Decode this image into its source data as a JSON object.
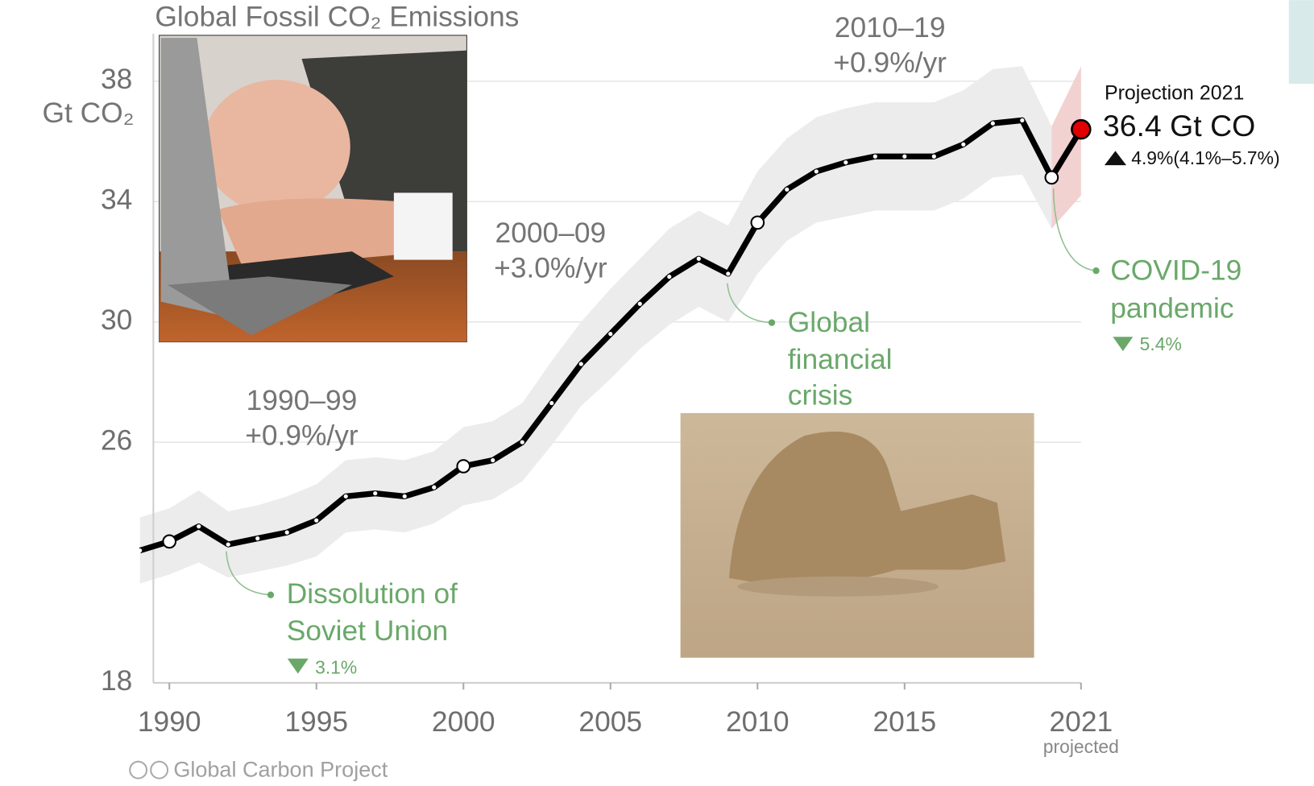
{
  "chart_data": {
    "type": "line",
    "title": "Global Fossil CO₂ Emissions",
    "y_label": "Gt CO₂",
    "x": [
      1989,
      1990,
      1991,
      1992,
      1993,
      1994,
      1995,
      1996,
      1997,
      1998,
      1999,
      2000,
      2001,
      2002,
      2003,
      2004,
      2005,
      2006,
      2007,
      2008,
      2009,
      2010,
      2011,
      2012,
      2013,
      2014,
      2015,
      2016,
      2017,
      2018,
      2019,
      2020,
      2021
    ],
    "series": [
      {
        "color": "#000000",
        "values": [
          22.4,
          22.7,
          23.2,
          22.6,
          22.8,
          23.0,
          23.4,
          24.2,
          24.3,
          24.2,
          24.5,
          25.2,
          25.4,
          26.0,
          27.3,
          28.6,
          29.6,
          30.6,
          31.5,
          32.1,
          31.6,
          33.3,
          34.4,
          35.0,
          35.3,
          35.5,
          35.5,
          35.5,
          35.9,
          36.6,
          36.7,
          34.8,
          36.4
        ],
        "lower": [
          21.3,
          21.6,
          22.0,
          21.5,
          21.7,
          21.9,
          22.2,
          23.0,
          23.1,
          23.0,
          23.3,
          23.9,
          24.1,
          24.7,
          25.9,
          27.2,
          28.1,
          29.1,
          29.9,
          30.5,
          30.0,
          31.6,
          32.7,
          33.3,
          33.5,
          33.7,
          33.7,
          33.7,
          34.1,
          34.8,
          34.9,
          33.1,
          34.2
        ],
        "upper": [
          23.5,
          23.8,
          24.4,
          23.7,
          23.9,
          24.2,
          24.6,
          25.4,
          25.5,
          25.4,
          25.7,
          26.5,
          26.7,
          27.3,
          28.7,
          30.0,
          31.1,
          32.1,
          33.1,
          33.7,
          33.2,
          35.0,
          36.1,
          36.8,
          37.1,
          37.3,
          37.3,
          37.3,
          37.7,
          38.4,
          38.5,
          36.5,
          38.5
        ]
      }
    ],
    "band_color": "#ececec",
    "projection_band_color": "#f1cccc",
    "projection_marker_color": "#e00000",
    "open_markers": [
      1990,
      2000,
      2010,
      2020
    ],
    "xlim": [
      1989,
      2021
    ],
    "xticks": [
      1990,
      1995,
      2000,
      2005,
      2010,
      2015,
      2021
    ],
    "x_tick_note": "projected",
    "ylim": [
      18,
      40
    ],
    "yticks": [
      18,
      26,
      30,
      34,
      38
    ],
    "grid": true,
    "periods": [
      {
        "label": "1990–99",
        "rate": "+0.9%/yr"
      },
      {
        "label": "2000–09",
        "rate": "+3.0%/yr"
      },
      {
        "label": "2010–19",
        "rate": "+0.9%/yr"
      }
    ],
    "projection": {
      "label": "Projection 2021",
      "value_text": "36.4 Gt CO",
      "change": "4.9%(4.1%–5.7%)"
    },
    "annotations": [
      {
        "lines": [
          "Dissolution of",
          "Soviet Union"
        ],
        "change": "3.1%"
      },
      {
        "lines": [
          "Global",
          "financial",
          "crisis"
        ]
      },
      {
        "lines": [
          "COVID-19",
          "pandemic"
        ],
        "change": "5.4%"
      }
    ],
    "source": "Global Carbon Project"
  }
}
